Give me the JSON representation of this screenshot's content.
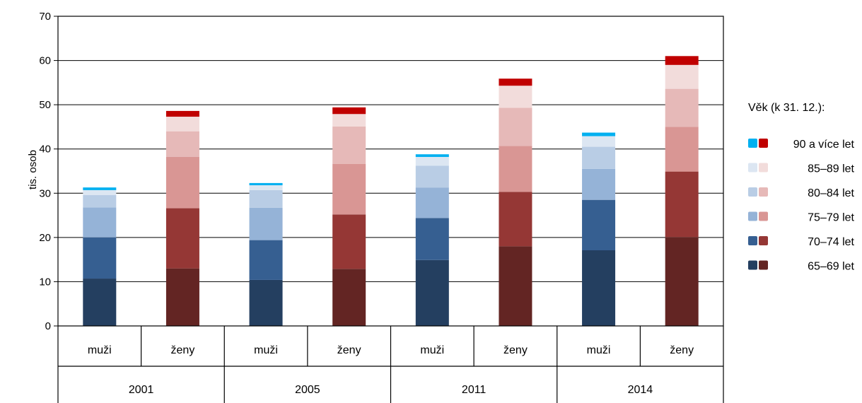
{
  "chart_data": {
    "type": "bar",
    "stacked": true,
    "ylabel": "tis. osob",
    "ylim": [
      0,
      70
    ],
    "yticks": [
      0,
      10,
      20,
      30,
      40,
      50,
      60,
      70
    ],
    "grid": true,
    "legend_placement": "right",
    "legend_title": "Věk (k 31. 12.):",
    "age_groups": [
      "65–69 let",
      "70–74 let",
      "75–79 let",
      "80–84 let",
      "85–89 let",
      "90 a více let"
    ],
    "legend_order": [
      "90 a více let",
      "85–89 let",
      "80–84 let",
      "75–79 let",
      "70–74 let",
      "65–69 let"
    ],
    "colors": {
      "muzi": [
        "#243f60",
        "#365f91",
        "#95b3d7",
        "#b9cde5",
        "#dce6f2",
        "#00b0f0"
      ],
      "zeny": [
        "#632523",
        "#953735",
        "#d99694",
        "#e6b9b8",
        "#f2dcdb",
        "#c00000"
      ]
    },
    "groups": [
      {
        "year": "2001",
        "bars": [
          {
            "sex": "muži",
            "values": [
              10.7,
              9.3,
              6.8,
              2.8,
              1.1,
              0.6
            ]
          },
          {
            "sex": "ženy",
            "values": [
              13.0,
              13.6,
              11.6,
              5.8,
              3.3,
              1.3
            ]
          }
        ]
      },
      {
        "year": "2005",
        "bars": [
          {
            "sex": "muži",
            "values": [
              10.4,
              9.0,
              7.3,
              4.0,
              1.1,
              0.5
            ]
          },
          {
            "sex": "ženy",
            "values": [
              12.9,
              12.3,
              11.4,
              8.5,
              2.8,
              1.5
            ]
          }
        ]
      },
      {
        "year": "2011",
        "bars": [
          {
            "sex": "muži",
            "values": [
              14.9,
              9.5,
              6.9,
              4.9,
              2.0,
              0.6
            ]
          },
          {
            "sex": "ženy",
            "values": [
              18.0,
              12.3,
              10.4,
              8.6,
              5.0,
              1.6
            ]
          }
        ]
      },
      {
        "year": "2014",
        "bars": [
          {
            "sex": "muži",
            "values": [
              17.1,
              11.4,
              7.0,
              5.0,
              2.4,
              0.8
            ]
          },
          {
            "sex": "ženy",
            "values": [
              20.1,
              14.8,
              10.1,
              8.6,
              5.4,
              2.0
            ]
          }
        ]
      }
    ]
  }
}
